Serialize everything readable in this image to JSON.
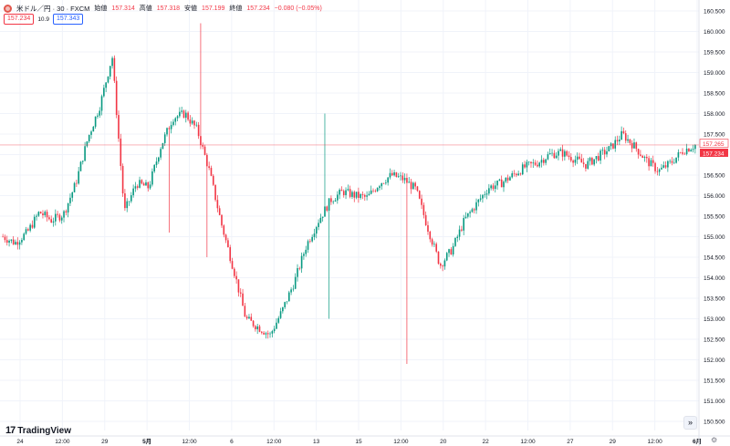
{
  "header": {
    "symbol": "米ドル／円 · 30 · FXCM",
    "ohlc": [
      {
        "label": "始値",
        "value": "157.314"
      },
      {
        "label": "高値",
        "value": "157.318"
      },
      {
        "label": "安値",
        "value": "157.199"
      },
      {
        "label": "終値",
        "value": "157.234"
      }
    ],
    "change": "−0.080 (−0.05%)",
    "sell_price": "157.234",
    "spread": "10.9",
    "buy_price": "157.343"
  },
  "brand": {
    "name": "TradingView"
  },
  "colors": {
    "up": "#089981",
    "down": "#f23645",
    "grid": "#f0f3fa",
    "text": "#131722"
  },
  "chart_data": {
    "type": "candlestick",
    "y_ticks": [
      "160.500",
      "160.000",
      "159.500",
      "159.000",
      "158.500",
      "158.000",
      "157.500",
      "157.000",
      "156.500",
      "156.000",
      "155.500",
      "155.000",
      "154.500",
      "154.000",
      "153.500",
      "153.000",
      "152.500",
      "152.000",
      "151.500",
      "151.000",
      "150.500"
    ],
    "ylim": [
      150.5,
      160.5
    ],
    "x_ticks": [
      "24",
      "12:00",
      "29",
      "5月",
      "12:00",
      "6",
      "12:00",
      "13",
      "15",
      "12:00",
      "20",
      "22",
      "12:00",
      "27",
      "29",
      "12:00",
      "6月"
    ],
    "last_price": "157.234",
    "last_price_alt": "157.265",
    "path": [
      155.0,
      154.85,
      155.1,
      155.6,
      155.4,
      155.55,
      156.3,
      157.4,
      158.2,
      159.4,
      155.6,
      156.3,
      156.2,
      157.2,
      157.9,
      158.0,
      157.6,
      156.6,
      155.3,
      154.2,
      153.0,
      152.8,
      152.6,
      153.2,
      153.9,
      154.8,
      155.4,
      155.9,
      156.1,
      156.0,
      155.95,
      156.3,
      156.5,
      156.4,
      156.15,
      155.2,
      154.3,
      154.7,
      155.4,
      155.8,
      156.2,
      156.3,
      156.5,
      156.7,
      156.8,
      157.0,
      157.05,
      156.9,
      156.75,
      156.95,
      157.15,
      157.5,
      157.2,
      156.85,
      156.6,
      156.8,
      157.1,
      157.23
    ]
  }
}
